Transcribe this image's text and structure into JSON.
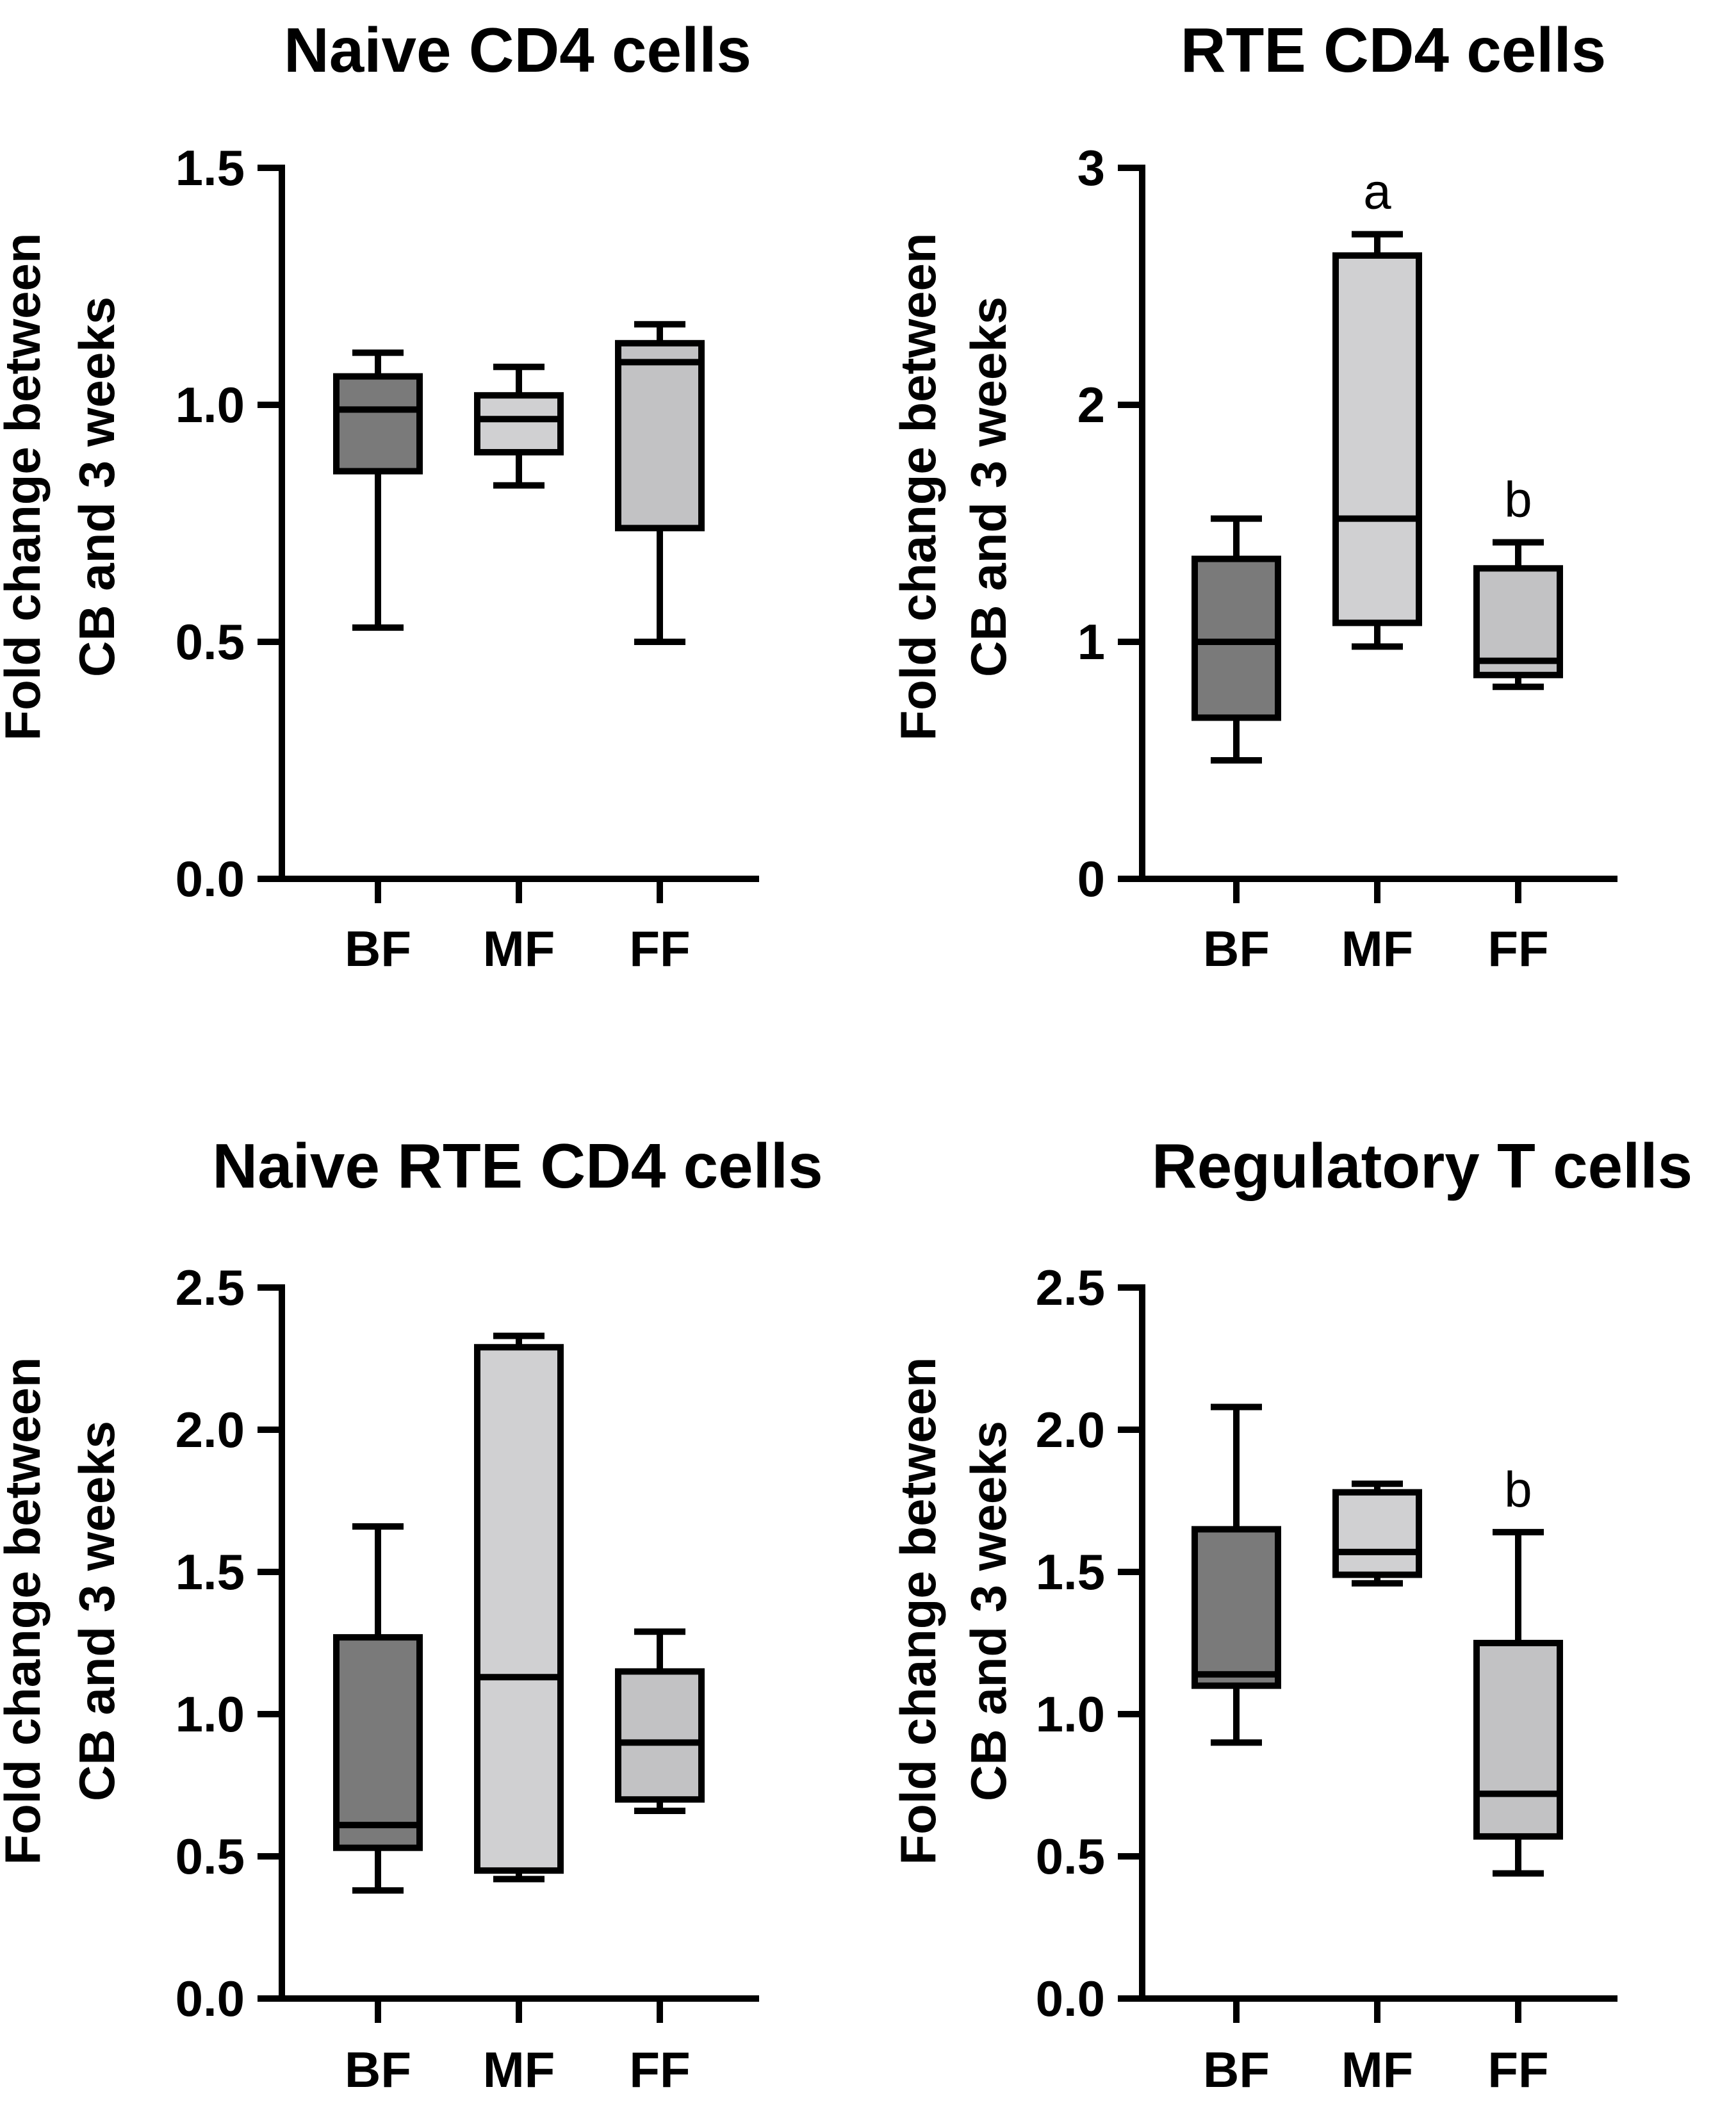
{
  "figure": {
    "ylabel_line1": "Fold change between",
    "ylabel_line2": "CB and 3 weeks"
  },
  "colors": {
    "BF": "#7a7a7a",
    "MF": "#d0d0d2",
    "FF": "#c2c2c4",
    "stroke": "#000000"
  },
  "chart_data": [
    {
      "type": "boxplot",
      "title": "Naive CD4 cells",
      "categories": [
        "BF",
        "MF",
        "FF"
      ],
      "ylim": [
        0,
        1.5
      ],
      "yticks": [
        "0.0",
        "0.5",
        "1.0",
        "1.5"
      ],
      "ytick_values": [
        0,
        0.5,
        1.0,
        1.5
      ],
      "boxes": [
        {
          "category": "BF",
          "min": 0.53,
          "q1": 0.86,
          "median": 0.99,
          "q3": 1.06,
          "max": 1.11,
          "annotation": ""
        },
        {
          "category": "MF",
          "min": 0.83,
          "q1": 0.9,
          "median": 0.97,
          "q3": 1.02,
          "max": 1.08,
          "annotation": ""
        },
        {
          "category": "FF",
          "min": 0.5,
          "q1": 0.74,
          "median": 1.09,
          "q3": 1.13,
          "max": 1.17,
          "annotation": ""
        }
      ]
    },
    {
      "type": "boxplot",
      "title": "RTE CD4 cells",
      "categories": [
        "BF",
        "MF",
        "FF"
      ],
      "ylim": [
        0,
        3
      ],
      "yticks": [
        "0",
        "1",
        "2",
        "3"
      ],
      "ytick_values": [
        0,
        1,
        2,
        3
      ],
      "boxes": [
        {
          "category": "BF",
          "min": 0.5,
          "q1": 0.68,
          "median": 1.0,
          "q3": 1.35,
          "max": 1.52,
          "annotation": ""
        },
        {
          "category": "MF",
          "min": 0.98,
          "q1": 1.08,
          "median": 1.52,
          "q3": 2.63,
          "max": 2.72,
          "annotation": "a"
        },
        {
          "category": "FF",
          "min": 0.81,
          "q1": 0.86,
          "median": 0.92,
          "q3": 1.31,
          "max": 1.42,
          "annotation": "b"
        }
      ]
    },
    {
      "type": "boxplot",
      "title": "Naive RTE CD4 cells",
      "categories": [
        "BF",
        "MF",
        "FF"
      ],
      "ylim": [
        0,
        2.5
      ],
      "yticks": [
        "0.0",
        "0.5",
        "1.0",
        "1.5",
        "2.0",
        "2.5"
      ],
      "ytick_values": [
        0,
        0.5,
        1.0,
        1.5,
        2.0,
        2.5
      ],
      "boxes": [
        {
          "category": "BF",
          "min": 0.38,
          "q1": 0.53,
          "median": 0.61,
          "q3": 1.27,
          "max": 1.66,
          "annotation": ""
        },
        {
          "category": "MF",
          "min": 0.42,
          "q1": 0.45,
          "median": 1.13,
          "q3": 2.29,
          "max": 2.33,
          "annotation": ""
        },
        {
          "category": "FF",
          "min": 0.66,
          "q1": 0.7,
          "median": 0.9,
          "q3": 1.15,
          "max": 1.29,
          "annotation": ""
        }
      ]
    },
    {
      "type": "boxplot",
      "title": "Regulatory T cells",
      "categories": [
        "BF",
        "MF",
        "FF"
      ],
      "ylim": [
        0,
        2.5
      ],
      "yticks": [
        "0.0",
        "0.5",
        "1.0",
        "1.5",
        "2.0",
        "2.5"
      ],
      "ytick_values": [
        0,
        0.5,
        1.0,
        1.5,
        2.0,
        2.5
      ],
      "boxes": [
        {
          "category": "BF",
          "min": 0.9,
          "q1": 1.1,
          "median": 1.14,
          "q3": 1.65,
          "max": 2.08,
          "annotation": ""
        },
        {
          "category": "MF",
          "min": 1.46,
          "q1": 1.49,
          "median": 1.57,
          "q3": 1.78,
          "max": 1.81,
          "annotation": ""
        },
        {
          "category": "FF",
          "min": 0.44,
          "q1": 0.57,
          "median": 0.72,
          "q3": 1.25,
          "max": 1.64,
          "annotation": "b"
        }
      ]
    }
  ]
}
